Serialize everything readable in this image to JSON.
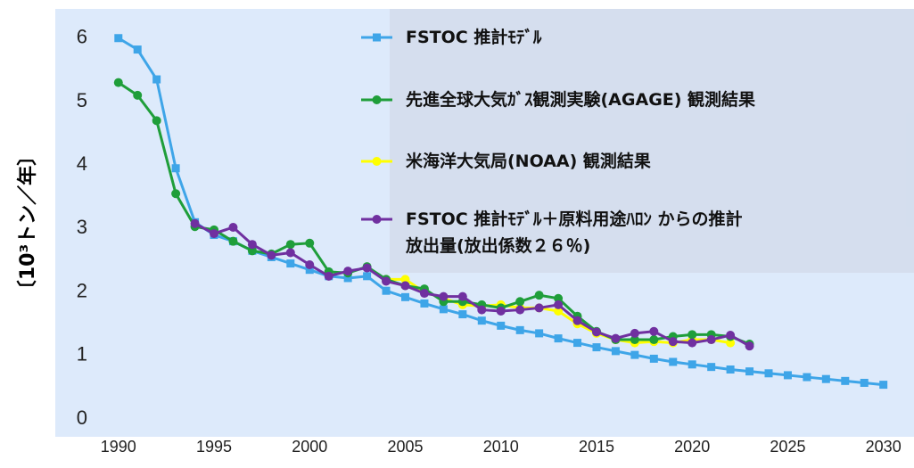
{
  "chart_data": {
    "type": "line",
    "y_label": "〔10³トン／年〕",
    "x": [
      1990,
      1991,
      1992,
      1993,
      1994,
      1995,
      1996,
      1997,
      1998,
      1999,
      2000,
      2001,
      2002,
      2003,
      2004,
      2005,
      2006,
      2007,
      2008,
      2009,
      2010,
      2011,
      2012,
      2013,
      2014,
      2015,
      2016,
      2017,
      2018,
      2019,
      2020,
      2021,
      2022,
      2023,
      2024,
      2025,
      2026,
      2027,
      2028,
      2029,
      2030
    ],
    "series": [
      {
        "name": "FSTOC 推計ﾓﾃﾞﾙ",
        "color": "#3ea5e8",
        "marker": "square",
        "values": [
          6.0,
          5.82,
          5.35,
          3.95,
          3.1,
          2.9,
          2.8,
          2.65,
          2.55,
          2.45,
          2.35,
          2.25,
          2.22,
          2.25,
          2.02,
          1.92,
          1.82,
          1.73,
          1.65,
          1.55,
          1.47,
          1.4,
          1.35,
          1.27,
          1.2,
          1.13,
          1.07,
          1.01,
          0.95,
          0.9,
          0.86,
          0.82,
          0.78,
          0.75,
          0.72,
          0.69,
          0.66,
          0.63,
          0.6,
          0.57,
          0.54
        ]
      },
      {
        "name": "先進全球大気ｶﾞｽ観測実験(AGAGE) 観測結果",
        "color": "#1f9e3a",
        "marker": "circle",
        "values": [
          5.3,
          5.1,
          4.7,
          3.55,
          3.03,
          2.98,
          2.8,
          2.65,
          2.6,
          2.75,
          2.77,
          2.32,
          2.3,
          2.4,
          2.2,
          2.1,
          2.05,
          1.85,
          1.85,
          1.8,
          1.75,
          1.85,
          1.95,
          1.9,
          1.62,
          1.38,
          1.25,
          1.25,
          1.25,
          1.3,
          1.33,
          1.33,
          1.3,
          1.18,
          null,
          null,
          null,
          null,
          null,
          null,
          null
        ]
      },
      {
        "name": "米海洋大気局(NOAA) 観測結果",
        "color": "#ffff00",
        "marker": "circle",
        "values": [
          null,
          null,
          null,
          null,
          null,
          null,
          null,
          null,
          null,
          null,
          null,
          null,
          null,
          null,
          2.2,
          2.2,
          2.0,
          1.9,
          1.8,
          1.78,
          1.8,
          1.75,
          1.75,
          1.7,
          1.5,
          1.35,
          1.25,
          1.2,
          1.22,
          1.2,
          1.25,
          1.25,
          1.2,
          null,
          null,
          null,
          null,
          null,
          null,
          null,
          null
        ]
      },
      {
        "name": "FSTOC 推計ﾓﾃﾞﾙ＋原料用途ﾊﾛﾝ からの推計\n 放出量(放出係数２６％)",
        "color": "#7030a0",
        "marker": "circle",
        "values": [
          null,
          null,
          null,
          null,
          3.08,
          2.92,
          3.02,
          2.75,
          2.58,
          2.62,
          2.43,
          2.25,
          2.33,
          2.38,
          2.17,
          2.1,
          1.98,
          1.93,
          1.93,
          1.72,
          1.7,
          1.72,
          1.75,
          1.8,
          1.55,
          1.37,
          1.27,
          1.35,
          1.38,
          1.22,
          1.2,
          1.25,
          1.32,
          1.15,
          null,
          null,
          null,
          null,
          null,
          null,
          null
        ]
      }
    ],
    "xlim": [
      1986.7,
      2031.6
    ],
    "xticks": [
      1990,
      1995,
      2000,
      2005,
      2010,
      2015,
      2020,
      2025,
      2030
    ],
    "ylim": [
      -0.28,
      6.46
    ],
    "yticks": [
      0,
      1,
      2,
      3,
      4,
      5,
      6
    ]
  }
}
